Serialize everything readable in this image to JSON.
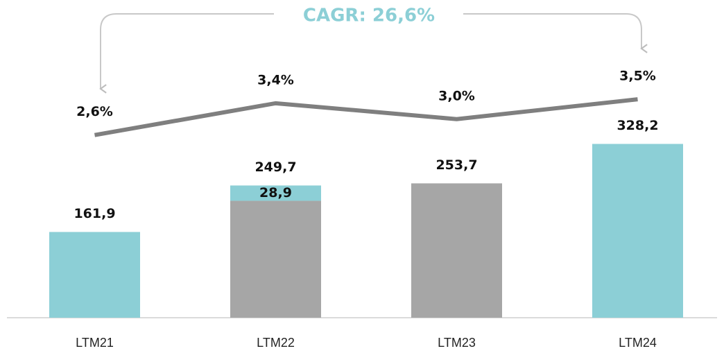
{
  "chart_data": {
    "type": "bar",
    "annotation": "CAGR: 26,6%",
    "categories": [
      "LTM21",
      "LTM22",
      "LTM23",
      "LTM24"
    ],
    "totals": [
      161.9,
      249.7,
      253.7,
      328.2
    ],
    "totals_labels": [
      "161,9",
      "249,7",
      "253,7",
      "328,2"
    ],
    "series": [
      {
        "color": "#a6a6a6",
        "values": [
          null,
          220.8,
          253.7,
          null
        ]
      },
      {
        "color": "#8ccfd6",
        "values": [
          161.9,
          28.9,
          null,
          328.2
        ],
        "value_labels": [
          null,
          "28,9",
          null,
          null
        ]
      },
      {
        "type": "line",
        "axis": "y2",
        "color": "#7f7f7f",
        "values": [
          2.6,
          3.4,
          3.0,
          3.5
        ],
        "value_labels": [
          "2,6%",
          "3,4%",
          "3,0%",
          "3,5%"
        ]
      }
    ],
    "ylim": [
      0,
      600
    ],
    "y2lim": [
      -2,
      6
    ]
  }
}
